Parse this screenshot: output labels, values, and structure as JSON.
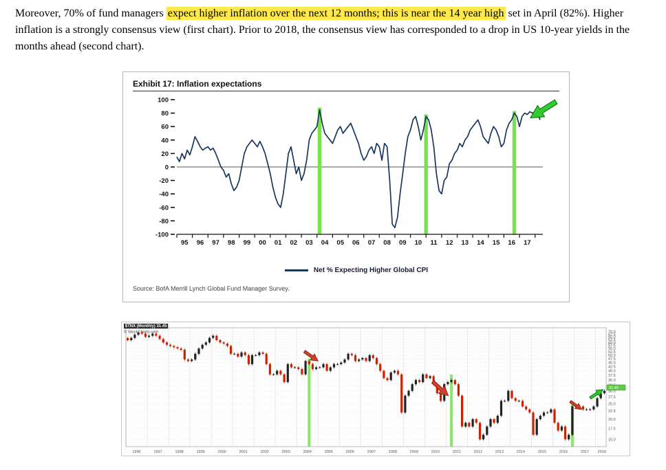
{
  "paragraph": {
    "pre": "Moreover, 70% of fund managers ",
    "highlight": "expect higher inflation over the next 12 months; this is near the 14 year high",
    "post": " set in April (82%). Higher inflation is a strongly consensus view (first chart). Prior to 2018, the consensus view has corresponded to a drop in US 10-year yields in the months ahead (second chart)."
  },
  "exhibit": {
    "title": "Exhibit 17: Inflation expectations",
    "legend": "Net % Expecting Higher Global CPI",
    "source": "Source: BofA Merrill Lynch Global Fund Manager Survey."
  },
  "chart2_meta": {
    "symbol_line": "$TNX (Monthly) 31.45",
    "credit_line": "© StockCharts.com"
  },
  "chart_data": [
    {
      "type": "line",
      "title": "Exhibit 17: Inflation expectations",
      "series_name": "Net % Expecting Higher Global CPI",
      "x_start": 1995,
      "x_span": 23.5,
      "points_per_year": 6,
      "x_tick_labels": [
        "95",
        "96",
        "97",
        "98",
        "99",
        "00",
        "01",
        "02",
        "03",
        "04",
        "05",
        "06",
        "07",
        "08",
        "09",
        "10",
        "11",
        "12",
        "13",
        "14",
        "15",
        "16",
        "17"
      ],
      "ylim": [
        -100,
        100
      ],
      "y_ticks": [
        100,
        80,
        60,
        40,
        20,
        0,
        -20,
        -40,
        -60,
        -80,
        -100
      ],
      "values": [
        15,
        8,
        20,
        12,
        25,
        18,
        30,
        45,
        38,
        30,
        25,
        28,
        30,
        25,
        28,
        20,
        10,
        0,
        -5,
        -15,
        -10,
        -25,
        -35,
        -30,
        -20,
        0,
        20,
        30,
        35,
        40,
        35,
        30,
        38,
        30,
        20,
        5,
        -10,
        -30,
        -45,
        -55,
        -60,
        -40,
        -10,
        20,
        30,
        10,
        -10,
        0,
        -20,
        -10,
        10,
        40,
        50,
        55,
        60,
        85,
        65,
        50,
        45,
        40,
        35,
        45,
        55,
        60,
        50,
        55,
        60,
        65,
        55,
        45,
        35,
        20,
        10,
        15,
        25,
        30,
        20,
        35,
        30,
        10,
        35,
        30,
        -20,
        -85,
        -90,
        -75,
        -40,
        -10,
        20,
        45,
        55,
        70,
        75,
        60,
        40,
        55,
        75,
        70,
        55,
        30,
        -10,
        -35,
        -40,
        -20,
        -15,
        5,
        10,
        20,
        25,
        35,
        30,
        40,
        45,
        55,
        60,
        65,
        70,
        60,
        45,
        40,
        35,
        50,
        60,
        55,
        45,
        30,
        35,
        55,
        65,
        70,
        80,
        75,
        60,
        75,
        80,
        78,
        82,
        80,
        82,
        78,
        70
      ],
      "green_bar_indices": [
        55,
        96,
        130
      ],
      "line_color": "#17365d",
      "bar_color": "#76e24c",
      "arrows": [
        {
          "f": 2017.7,
          "v": 73,
          "angle": 148,
          "len": 44,
          "color": "#2fcc2f",
          "outline": "#0f6c0f"
        }
      ]
    },
    {
      "type": "candlestick",
      "symbol": "$TNX",
      "timeframe": "Monthly",
      "x_start": 1996,
      "x_span": 22.5,
      "points_per_year": 6,
      "x_tick_labels": [
        "1996",
        "1997",
        "1998",
        "1999",
        "2000",
        "2001",
        "2002",
        "2003",
        "2004",
        "2005",
        "2006",
        "2007",
        "2008",
        "2009",
        "2010",
        "2011",
        "2012",
        "2013",
        "2014",
        "2015",
        "2016",
        "2017",
        "2018"
      ],
      "y_scale": "log",
      "ylim": [
        13.5,
        74
      ],
      "y_tick_min": 15,
      "y_tick_max": 70,
      "y_tick_step": 2.5,
      "closes": [
        62,
        64,
        67,
        69,
        68,
        65,
        66,
        68,
        66,
        63,
        60,
        58,
        57,
        56,
        55,
        54,
        47,
        46,
        47,
        51,
        55,
        58,
        60,
        64,
        66,
        62,
        60,
        59,
        57,
        51,
        51,
        49,
        52,
        50,
        44,
        50,
        50,
        52,
        51,
        44,
        38,
        38,
        40,
        38,
        34,
        44,
        42,
        42,
        41,
        38,
        46,
        44,
        41,
        42,
        42,
        44,
        40,
        42,
        44,
        44,
        45,
        47,
        51,
        50,
        46,
        47,
        48,
        46,
        50,
        48,
        44,
        40,
        36,
        35,
        39,
        40,
        38,
        22,
        28,
        30,
        33,
        35,
        34,
        38,
        36,
        37,
        33,
        29,
        26,
        33,
        34,
        35,
        33,
        28,
        18,
        19,
        18,
        20,
        19,
        15,
        16,
        18,
        20,
        19,
        21,
        26,
        26,
        30,
        27,
        26,
        26,
        24,
        23,
        22,
        16,
        20,
        21,
        22,
        22,
        23,
        19,
        17,
        18,
        15,
        16,
        24,
        24,
        24,
        23,
        23,
        23,
        24,
        27,
        29,
        30
      ],
      "last_price": "31.45",
      "up_color": "#222222",
      "down_color": "#cc2200",
      "bar_color": "#76e24c",
      "green_bar_indices": [
        51,
        91,
        125
      ],
      "arrows": [
        {
          "f": 2005.0,
          "v": 46,
          "angle": 35,
          "len": 24,
          "color": "#d2412e",
          "outline": "#8f1f10"
        },
        {
          "f": 2011.1,
          "v": 28,
          "angle": 42,
          "len": 30,
          "color": "#d2412e",
          "outline": "#8f1f10"
        },
        {
          "f": 2017.35,
          "v": 23,
          "angle": 35,
          "len": 20,
          "color": "#d2412e",
          "outline": "#8f1f10"
        },
        {
          "f": 2018.35,
          "v": 30.5,
          "angle": -33,
          "len": 22,
          "color": "#2fcc2f",
          "outline": "#0f6c0f"
        }
      ]
    }
  ]
}
